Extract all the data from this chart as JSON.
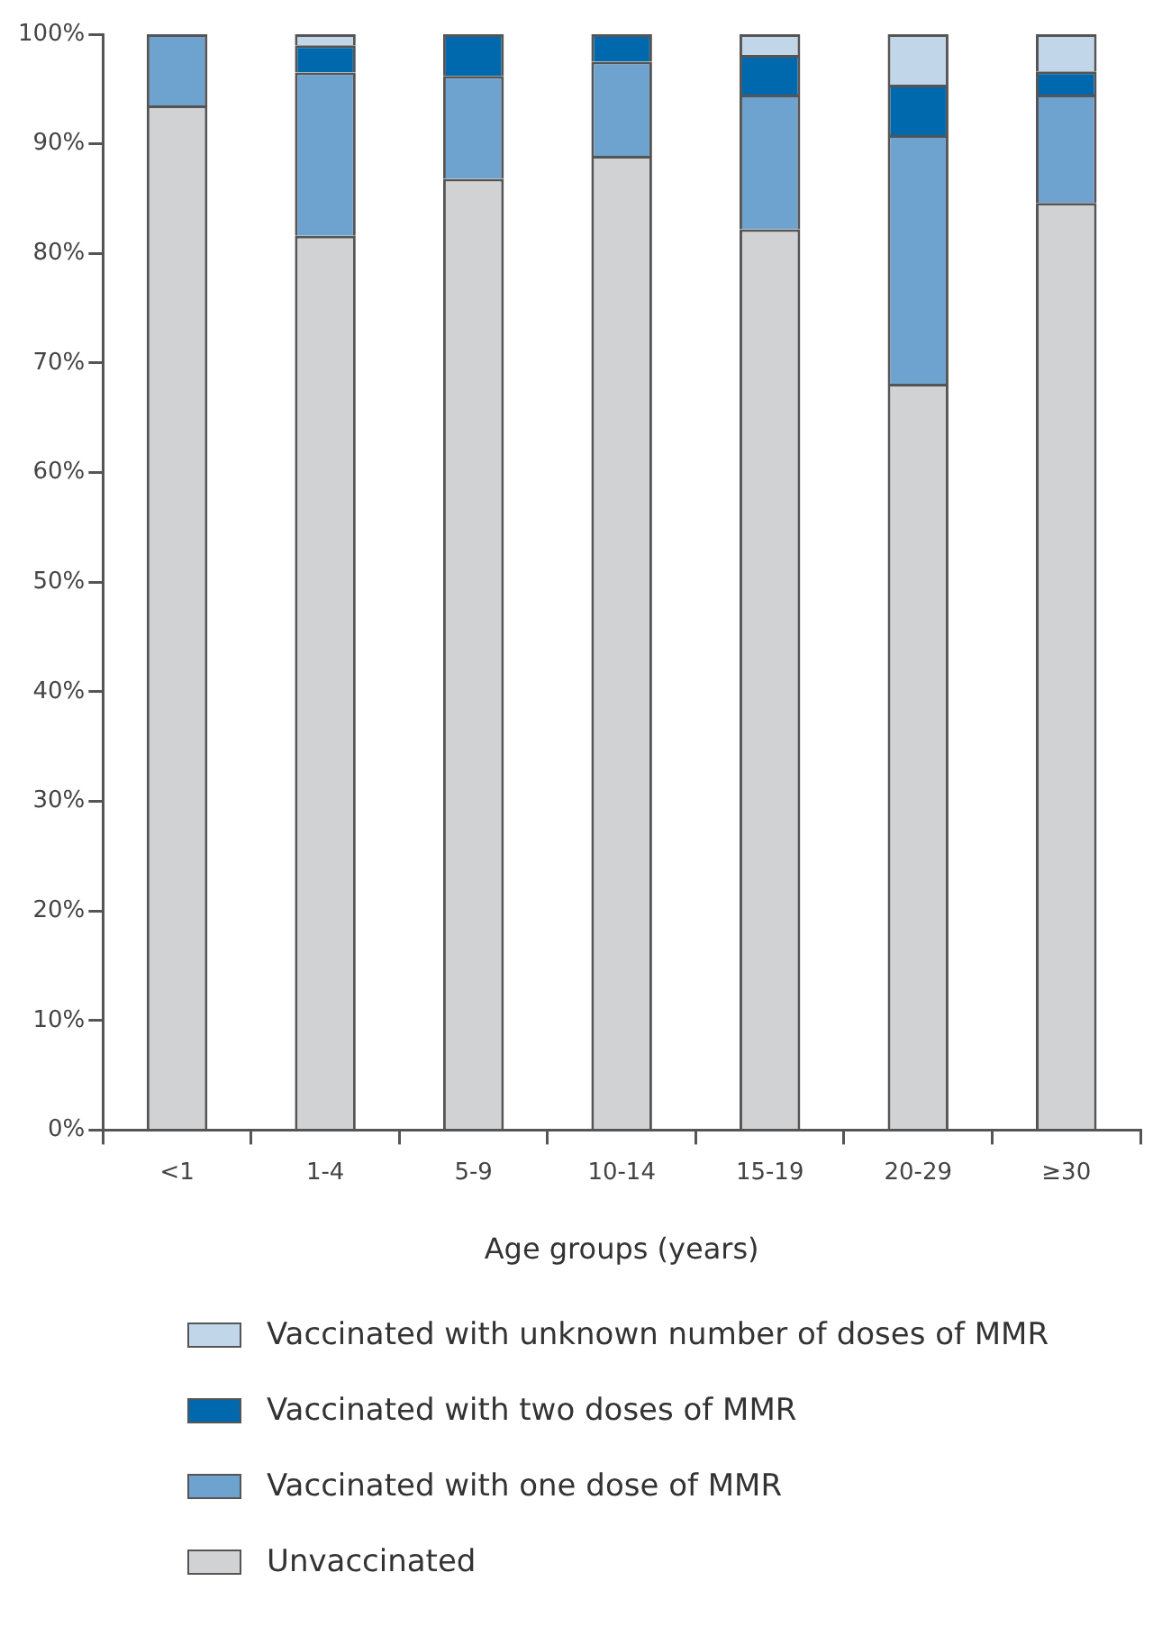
{
  "chart_data": {
    "type": "bar",
    "stacked": true,
    "xlabel": "Age groups (years)",
    "categories": [
      "<1",
      "1-4",
      "5-9",
      "10-14",
      "15-19",
      "20-29",
      "≥30"
    ],
    "series": [
      {
        "name": "Unvaccinated",
        "color": "#d1d2d4",
        "values": [
          93.5,
          81.6,
          86.8,
          88.9,
          82.2,
          68.1,
          84.6
        ]
      },
      {
        "name": "Vaccinated with one dose of MMR",
        "color": "#6fa3cf",
        "values": [
          6.5,
          14.9,
          9.4,
          8.6,
          12.3,
          22.7,
          9.9
        ]
      },
      {
        "name": "Vaccinated with two doses of MMR",
        "color": "#0069ad",
        "values": [
          0,
          2.5,
          3.8,
          2.5,
          3.6,
          4.6,
          2.1
        ]
      },
      {
        "name": "Vaccinated with unknown number of doses of MMR",
        "color": "#c2d6ea",
        "values": [
          0,
          1.0,
          0,
          0,
          1.9,
          4.6,
          3.4
        ]
      }
    ],
    "ylim": [
      0,
      100
    ],
    "yticks": [
      {
        "value": 0,
        "label": "0%"
      },
      {
        "value": 10,
        "label": "10%"
      },
      {
        "value": 20,
        "label": "20%"
      },
      {
        "value": 30,
        "label": "30%"
      },
      {
        "value": 40,
        "label": "40%"
      },
      {
        "value": 50,
        "label": "50%"
      },
      {
        "value": 60,
        "label": "60%"
      },
      {
        "value": 70,
        "label": "70%"
      },
      {
        "value": 80,
        "label": "80%"
      },
      {
        "value": 90,
        "label": "90%"
      },
      {
        "value": 100,
        "label": "100%"
      }
    ],
    "grid": false,
    "legend": "bottom"
  }
}
